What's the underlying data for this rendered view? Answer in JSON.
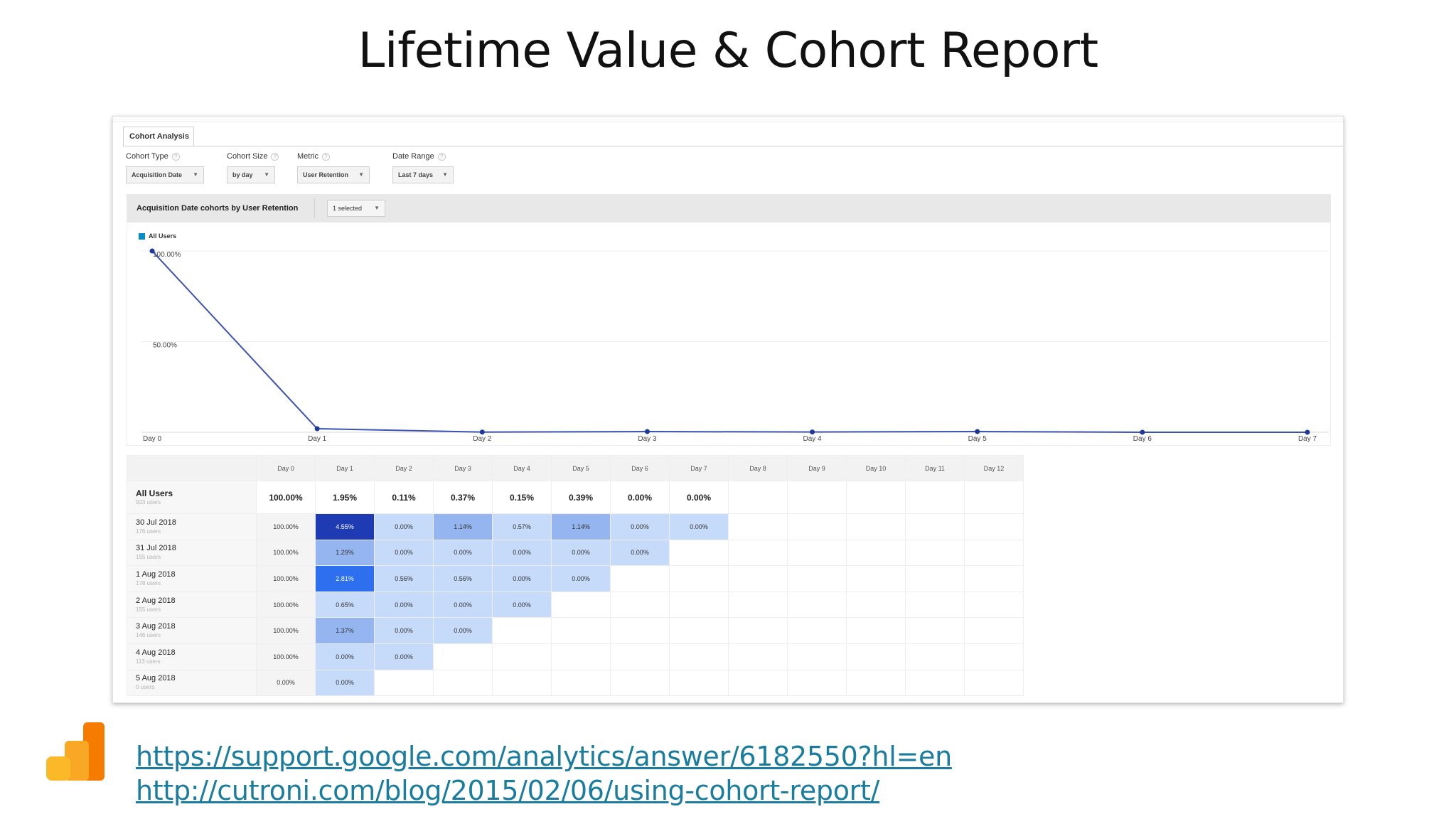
{
  "slide": {
    "title": "Lifetime Value & Cohort Report"
  },
  "report": {
    "tab_label": "Cohort Analysis",
    "controls": [
      {
        "label": "Cohort Type",
        "value": "Acquisition Date"
      },
      {
        "label": "Cohort Size",
        "value": "by day"
      },
      {
        "label": "Metric",
        "value": "User Retention"
      },
      {
        "label": "Date Range",
        "value": "Last 7 days"
      }
    ],
    "chart_header": {
      "title": "Acquisition Date cohorts by User Retention",
      "selector": "1 selected"
    },
    "legend": "All Users",
    "table": {
      "columns": [
        "Day 0",
        "Day 1",
        "Day 2",
        "Day 3",
        "Day 4",
        "Day 5",
        "Day 6",
        "Day 7",
        "Day 8",
        "Day 9",
        "Day 10",
        "Day 11",
        "Day 12"
      ],
      "all_users": {
        "label": "All Users",
        "sub": "923 users",
        "values": [
          "100.00%",
          "1.95%",
          "0.11%",
          "0.37%",
          "0.15%",
          "0.39%",
          "0.00%",
          "0.00%"
        ]
      },
      "rows": [
        {
          "label": "30 Jul 2018",
          "sub": "176 users",
          "values": [
            "100.00%",
            "4.55%",
            "0.00%",
            "1.14%",
            "0.57%",
            "1.14%",
            "0.00%",
            "0.00%"
          ]
        },
        {
          "label": "31 Jul 2018",
          "sub": "155 users",
          "values": [
            "100.00%",
            "1.29%",
            "0.00%",
            "0.00%",
            "0.00%",
            "0.00%",
            "0.00%"
          ]
        },
        {
          "label": "1 Aug 2018",
          "sub": "178 users",
          "values": [
            "100.00%",
            "2.81%",
            "0.56%",
            "0.56%",
            "0.00%",
            "0.00%"
          ]
        },
        {
          "label": "2 Aug 2018",
          "sub": "155 users",
          "values": [
            "100.00%",
            "0.65%",
            "0.00%",
            "0.00%",
            "0.00%"
          ]
        },
        {
          "label": "3 Aug 2018",
          "sub": "146 users",
          "values": [
            "100.00%",
            "1.37%",
            "0.00%",
            "0.00%"
          ]
        },
        {
          "label": "4 Aug 2018",
          "sub": "113 users",
          "values": [
            "100.00%",
            "0.00%",
            "0.00%"
          ]
        },
        {
          "label": "5 Aug 2018",
          "sub": "0 users",
          "values": [
            "0.00%",
            "0.00%"
          ]
        }
      ]
    }
  },
  "chart_data": {
    "type": "line",
    "x": [
      "Day 0",
      "Day 1",
      "Day 2",
      "Day 3",
      "Day 4",
      "Day 5",
      "Day 6",
      "Day 7"
    ],
    "series": [
      {
        "name": "All Users",
        "values": [
          100.0,
          1.95,
          0.11,
          0.37,
          0.15,
          0.39,
          0.0,
          0.0
        ]
      }
    ],
    "y_ticks": [
      "100.00%",
      "50.00%"
    ],
    "ylim": [
      0,
      100
    ],
    "grid": true,
    "line_color": "#3a52b2"
  },
  "colors": {
    "heat_max": "#1f3bb3",
    "heat_high": "#2e6ff0",
    "heat_mid": "#94b5f0",
    "heat_low": "#c6daf9",
    "link": "#1a7da0",
    "logo_orange": "#f57c00",
    "logo_yellow": "#fbb829"
  },
  "footer": {
    "logo": "google-analytics-logo",
    "links": [
      "https://support.google.com/analytics/answer/6182550?hl=en",
      "http://cutroni.com/blog/2015/02/06/using-cohort-report/"
    ]
  }
}
